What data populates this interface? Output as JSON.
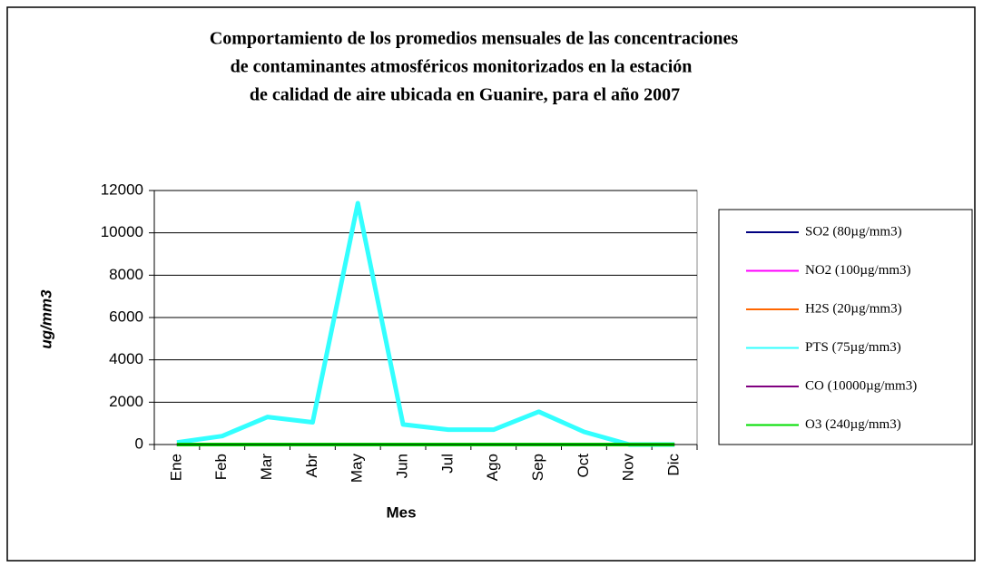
{
  "chart_data": {
    "type": "line",
    "title": [
      "Comportamiento de los promedios mensuales de las concentraciones",
      "de contaminantes atmosféricos monitorizados en la estación",
      "de calidad de aire ubicada en Guanire, para el año 2007"
    ],
    "x_label": "Mes",
    "y_label": "ug/mm3",
    "categories": [
      "Ene",
      "Feb",
      "Mar",
      "Abr",
      "May",
      "Jun",
      "Jul",
      "Ago",
      "Sep",
      "Oct",
      "Nov",
      "Dic"
    ],
    "series": [
      {
        "name": "SO2 (80µg/mm3)",
        "color": "#000080",
        "values": [
          0,
          0,
          0,
          0,
          0,
          0,
          0,
          0,
          0,
          0,
          0,
          0
        ]
      },
      {
        "name": "NO2 (100µg/mm3)",
        "color": "#ff00ff",
        "values": [
          0,
          0,
          0,
          0,
          0,
          0,
          0,
          0,
          0,
          0,
          0,
          0
        ]
      },
      {
        "name": "H2S (20µg/mm3)",
        "color": "#ff6600",
        "values": [
          0,
          0,
          0,
          0,
          0,
          0,
          0,
          0,
          0,
          0,
          0,
          0
        ]
      },
      {
        "name": "PTS (75µg/mm3)",
        "color": "#33ffff",
        "values": [
          100,
          400,
          1300,
          1050,
          11400,
          950,
          700,
          700,
          1550,
          600,
          0,
          0
        ]
      },
      {
        "name": "CO (10000µg/mm3)",
        "color": "#800080",
        "values": [
          0,
          0,
          0,
          0,
          0,
          0,
          0,
          0,
          0,
          0,
          0,
          0
        ]
      },
      {
        "name": "O3 (240µg/mm3)",
        "color": "#00dd00",
        "values": [
          0,
          0,
          0,
          0,
          0,
          0,
          0,
          0,
          0,
          0,
          0,
          0
        ]
      }
    ],
    "ylim": [
      0,
      12000
    ],
    "yticks": [
      0,
      2000,
      4000,
      6000,
      8000,
      10000,
      12000
    ],
    "grid": true,
    "legend": "right"
  }
}
